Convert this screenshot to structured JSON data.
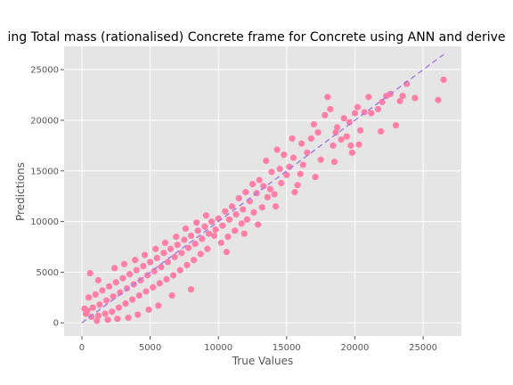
{
  "chart_data": {
    "type": "scatter",
    "title": "ing Total mass (rationalised) Concrete  frame for Concrete using ANN and derive",
    "xlabel": "True Values",
    "ylabel": "Predictions",
    "xlim": [
      -1300,
      27800
    ],
    "ylim": [
      -1300,
      27300
    ],
    "xticks": [
      0,
      5000,
      10000,
      15000,
      20000,
      25000
    ],
    "yticks": [
      0,
      5000,
      10000,
      15000,
      20000,
      25000
    ],
    "xtick_labels": [
      "0",
      "5000",
      "10000",
      "15000",
      "20000",
      "25000"
    ],
    "ytick_labels": [
      "0",
      "5000",
      "10000",
      "15000",
      "20000",
      "25000"
    ],
    "grid": true,
    "point_color": "#ff7fa7",
    "reference_line": {
      "style": "dashed",
      "color": "#a67fe0",
      "x": [
        0,
        26500
      ],
      "y": [
        0,
        26500
      ]
    },
    "series": [
      {
        "points": [
          [
            26500,
            24000
          ],
          [
            26100,
            22000
          ],
          [
            24400,
            22200
          ],
          [
            23800,
            23600
          ],
          [
            23500,
            22400
          ],
          [
            23300,
            21900
          ],
          [
            23000,
            19500
          ],
          [
            22600,
            22600
          ],
          [
            22300,
            22400
          ],
          [
            22000,
            21800
          ],
          [
            21700,
            21100
          ],
          [
            21200,
            20700
          ],
          [
            21000,
            22300
          ],
          [
            20700,
            20800
          ],
          [
            20400,
            19000
          ],
          [
            20300,
            17600
          ],
          [
            20200,
            21300
          ],
          [
            20000,
            20700
          ],
          [
            19700,
            17500
          ],
          [
            19600,
            19800
          ],
          [
            19400,
            18400
          ],
          [
            19200,
            20200
          ],
          [
            19000,
            18100
          ],
          [
            18700,
            19300
          ],
          [
            18600,
            18800
          ],
          [
            18400,
            17500
          ],
          [
            18200,
            21100
          ],
          [
            18000,
            22300
          ],
          [
            17800,
            20500
          ],
          [
            17500,
            16100
          ],
          [
            17300,
            18800
          ],
          [
            17000,
            19600
          ],
          [
            16800,
            18200
          ],
          [
            16500,
            16800
          ],
          [
            16200,
            15600
          ],
          [
            16100,
            17700
          ],
          [
            16000,
            14700
          ],
          [
            15800,
            13600
          ],
          [
            15500,
            16300
          ],
          [
            15400,
            18200
          ],
          [
            15200,
            15400
          ],
          [
            15000,
            14600
          ],
          [
            14800,
            16600
          ],
          [
            14600,
            13800
          ],
          [
            14500,
            15200
          ],
          [
            14300,
            17100
          ],
          [
            14100,
            12700
          ],
          [
            13900,
            14900
          ],
          [
            13800,
            13200
          ],
          [
            13600,
            12400
          ],
          [
            13500,
            16000
          ],
          [
            13300,
            13500
          ],
          [
            13200,
            11400
          ],
          [
            13000,
            14100
          ],
          [
            12800,
            12800
          ],
          [
            12600,
            10900
          ],
          [
            12500,
            13700
          ],
          [
            12300,
            12000
          ],
          [
            12100,
            10200
          ],
          [
            12000,
            12900
          ],
          [
            11800,
            11200
          ],
          [
            11700,
            9800
          ],
          [
            11500,
            12300
          ],
          [
            11300,
            10700
          ],
          [
            11200,
            9100
          ],
          [
            11000,
            11500
          ],
          [
            10800,
            10200
          ],
          [
            10700,
            8500
          ],
          [
            10500,
            11000
          ],
          [
            10300,
            9600
          ],
          [
            10200,
            7900
          ],
          [
            10000,
            10300
          ],
          [
            9800,
            9200
          ],
          [
            9700,
            8600
          ],
          [
            9500,
            10000
          ],
          [
            9300,
            8800
          ],
          [
            9200,
            7300
          ],
          [
            9000,
            9500
          ],
          [
            8800,
            8300
          ],
          [
            8700,
            6800
          ],
          [
            8500,
            9100
          ],
          [
            8300,
            7800
          ],
          [
            8200,
            6200
          ],
          [
            8000,
            8600
          ],
          [
            7800,
            7400
          ],
          [
            7700,
            5700
          ],
          [
            7500,
            8200
          ],
          [
            7300,
            6900
          ],
          [
            7200,
            5200
          ],
          [
            7000,
            7700
          ],
          [
            6800,
            6500
          ],
          [
            6700,
            4700
          ],
          [
            6500,
            7300
          ],
          [
            6300,
            6000
          ],
          [
            6200,
            4300
          ],
          [
            6000,
            6900
          ],
          [
            5800,
            5500
          ],
          [
            5700,
            3900
          ],
          [
            5500,
            6400
          ],
          [
            5300,
            5100
          ],
          [
            5200,
            3500
          ],
          [
            5000,
            6000
          ],
          [
            4800,
            4700
          ],
          [
            4700,
            3100
          ],
          [
            4500,
            5600
          ],
          [
            4300,
            4200
          ],
          [
            4200,
            2700
          ],
          [
            4000,
            5200
          ],
          [
            3800,
            3800
          ],
          [
            3700,
            2300
          ],
          [
            3500,
            4800
          ],
          [
            3300,
            3400
          ],
          [
            3200,
            1900
          ],
          [
            3000,
            4400
          ],
          [
            2800,
            3000
          ],
          [
            2700,
            1500
          ],
          [
            2500,
            4000
          ],
          [
            2300,
            2600
          ],
          [
            2200,
            1100
          ],
          [
            2000,
            3600
          ],
          [
            1800,
            2200
          ],
          [
            1700,
            900
          ],
          [
            1500,
            3200
          ],
          [
            1300,
            1800
          ],
          [
            1200,
            700
          ],
          [
            1000,
            2800
          ],
          [
            800,
            1500
          ],
          [
            700,
            600
          ],
          [
            500,
            2500
          ],
          [
            400,
            1200
          ],
          [
            300,
            900
          ],
          [
            200,
            1400
          ],
          [
            600,
            4900
          ],
          [
            1200,
            4200
          ],
          [
            2400,
            5400
          ],
          [
            3100,
            5800
          ],
          [
            3900,
            6200
          ],
          [
            4600,
            6700
          ],
          [
            5400,
            7300
          ],
          [
            6100,
            7900
          ],
          [
            6900,
            8500
          ],
          [
            7600,
            9300
          ],
          [
            8400,
            9900
          ],
          [
            9100,
            10600
          ],
          [
            8000,
            3300
          ],
          [
            6600,
            2700
          ],
          [
            5600,
            1700
          ],
          [
            4900,
            1300
          ],
          [
            4100,
            800
          ],
          [
            3400,
            500
          ],
          [
            2600,
            400
          ],
          [
            1900,
            300
          ],
          [
            1100,
            200
          ],
          [
            10600,
            7000
          ],
          [
            11900,
            8800
          ],
          [
            12900,
            9700
          ],
          [
            14200,
            11500
          ],
          [
            15600,
            12900
          ],
          [
            17100,
            14400
          ],
          [
            18500,
            15900
          ],
          [
            19800,
            16800
          ],
          [
            21900,
            18900
          ]
        ]
      }
    ]
  }
}
